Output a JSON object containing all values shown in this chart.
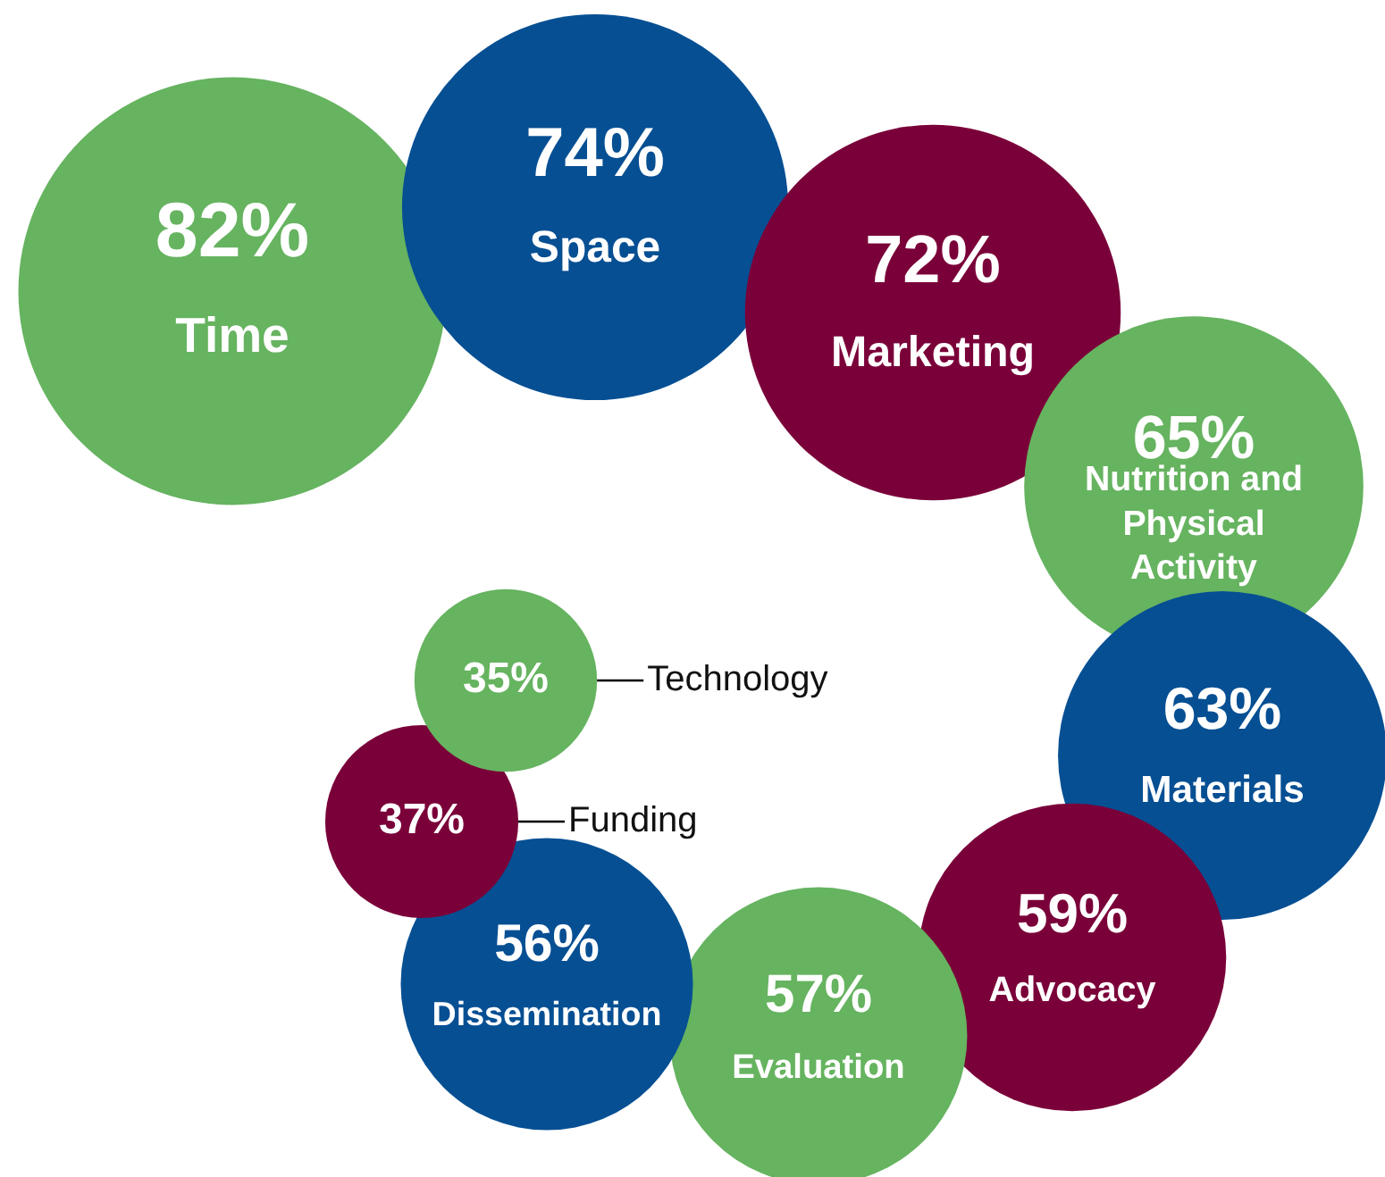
{
  "chart_data": {
    "type": "other",
    "categories": [
      "Time",
      "Space",
      "Marketing",
      "Nutrition and Physical Activity",
      "Materials",
      "Advocacy",
      "Evaluation",
      "Dissemination",
      "Funding",
      "Technology"
    ],
    "values": [
      82,
      74,
      72,
      65,
      63,
      59,
      57,
      56,
      37,
      35
    ],
    "value_labels": [
      "82%",
      "74%",
      "72%",
      "65%",
      "63%",
      "59%",
      "57%",
      "56%",
      "37%",
      "35%"
    ],
    "colors": [
      "#66b360",
      "#064f93",
      "#7a0039",
      "#66b360",
      "#064f93",
      "#7a0039",
      "#66b360",
      "#064f93",
      "#7a0039",
      "#66b360"
    ]
  }
}
